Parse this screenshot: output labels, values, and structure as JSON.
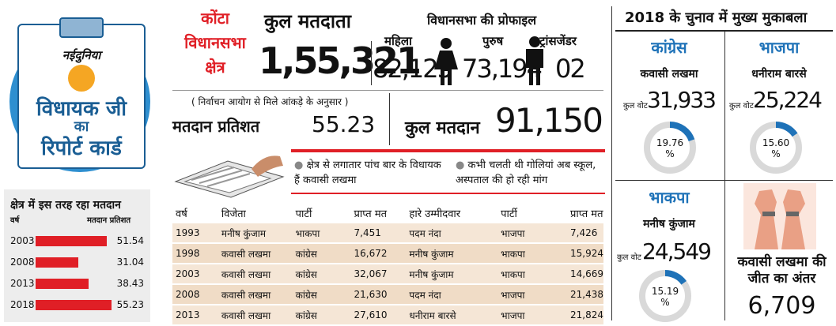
{
  "report_card": {
    "brand": "नईदुनिया",
    "line1": "विधायक जी",
    "line2": "का",
    "line3": "रिपोर्ट कार्ड"
  },
  "turnout_history": {
    "title": "क्षेत्र में इस तरह रहा मतदान",
    "col_year": "वर्ष",
    "col_pct": "मतदान प्रतिशत",
    "rows": [
      {
        "year": "2003",
        "value": "51.54",
        "pct": 51.54
      },
      {
        "year": "2008",
        "value": "31.04",
        "pct": 31.04
      },
      {
        "year": "2013",
        "value": "38.43",
        "pct": 38.43
      },
      {
        "year": "2018",
        "value": "55.23",
        "pct": 55.23
      }
    ]
  },
  "constituency": {
    "line1": "कोंटा",
    "line2": "विधानसभा",
    "line3": "क्षेत्र"
  },
  "total_voters": {
    "label": "कुल मतदाता",
    "value": "1,55,321"
  },
  "profile": {
    "title": "विधानसभा की प्रोफाइल",
    "female_label": "महिला",
    "female_value": "82,125",
    "male_label": "पुरुष",
    "male_value": "73,194",
    "trans_label": "ट्रांसजेंडर",
    "trans_value": "02"
  },
  "source_note": "( निर्वाचन आयोग से मिले आंकड़े के अनुसार )",
  "turnout": {
    "label": "मतदान प्रतिशत",
    "value": "55.23"
  },
  "votes_cast": {
    "label": "कुल मतदान",
    "value": "91,150"
  },
  "facts": [
    "क्षेत्र से लगातार पांच बार के विधायक हैं कवासी लखमा",
    "कभी चलती थी गोलियां अब स्कूल, अस्पताल की हो रही मांग"
  ],
  "history_table": {
    "headers": [
      "वर्ष",
      "विजेता",
      "पार्टी",
      "प्राप्त मत",
      "हारे उम्मीदवार",
      "पार्टी",
      "प्राप्त मत"
    ],
    "rows": [
      [
        "1993",
        "मनीष कुंजाम",
        "भाकपा",
        "7,451",
        "पदम नंदा",
        "भाजपा",
        "7,426"
      ],
      [
        "1998",
        "कवासी लखमा",
        "कांग्रेस",
        "16,672",
        "मनीष कुंजाम",
        "भाकपा",
        "15,924"
      ],
      [
        "2003",
        "कवासी लखमा",
        "कांग्रेस",
        "32,067",
        "मनीष कुंजाम",
        "भाकपा",
        "14,669"
      ],
      [
        "2008",
        "कवासी लखमा",
        "कांग्रेस",
        "21,630",
        "पदम नंदा",
        "भाजपा",
        "21,438"
      ],
      [
        "2013",
        "कवासी लखमा",
        "कांग्रेस",
        "27,610",
        "धनीराम बारसे",
        "भाजपा",
        "21,824"
      ]
    ]
  },
  "contest": {
    "title": "2018 के चुनाव में मुख्य मुकाबला",
    "vote_label": "कुल वोट",
    "candidates": [
      {
        "party": "कांग्रेस",
        "name": "कवासी लखमा",
        "votes": "31,933",
        "share": "19.76",
        "share_num": 19.76,
        "unit": "%"
      },
      {
        "party": "भाजपा",
        "name": "धनीराम बारसे",
        "votes": "25,224",
        "share": "15.60",
        "share_num": 15.6,
        "unit": "%"
      },
      {
        "party": "भाकपा",
        "name": "मनीष कुंजाम",
        "votes": "24,549",
        "share": "15.19",
        "share_num": 15.19,
        "unit": "%"
      }
    ],
    "margin_label": "कवासी लखमा की जीत का अंतर",
    "margin_value": "6,709"
  },
  "colors": {
    "red": "#e01f26",
    "blue": "#1e72b8",
    "ring": "#d9d9d9",
    "badge": "#2e8fd0"
  }
}
